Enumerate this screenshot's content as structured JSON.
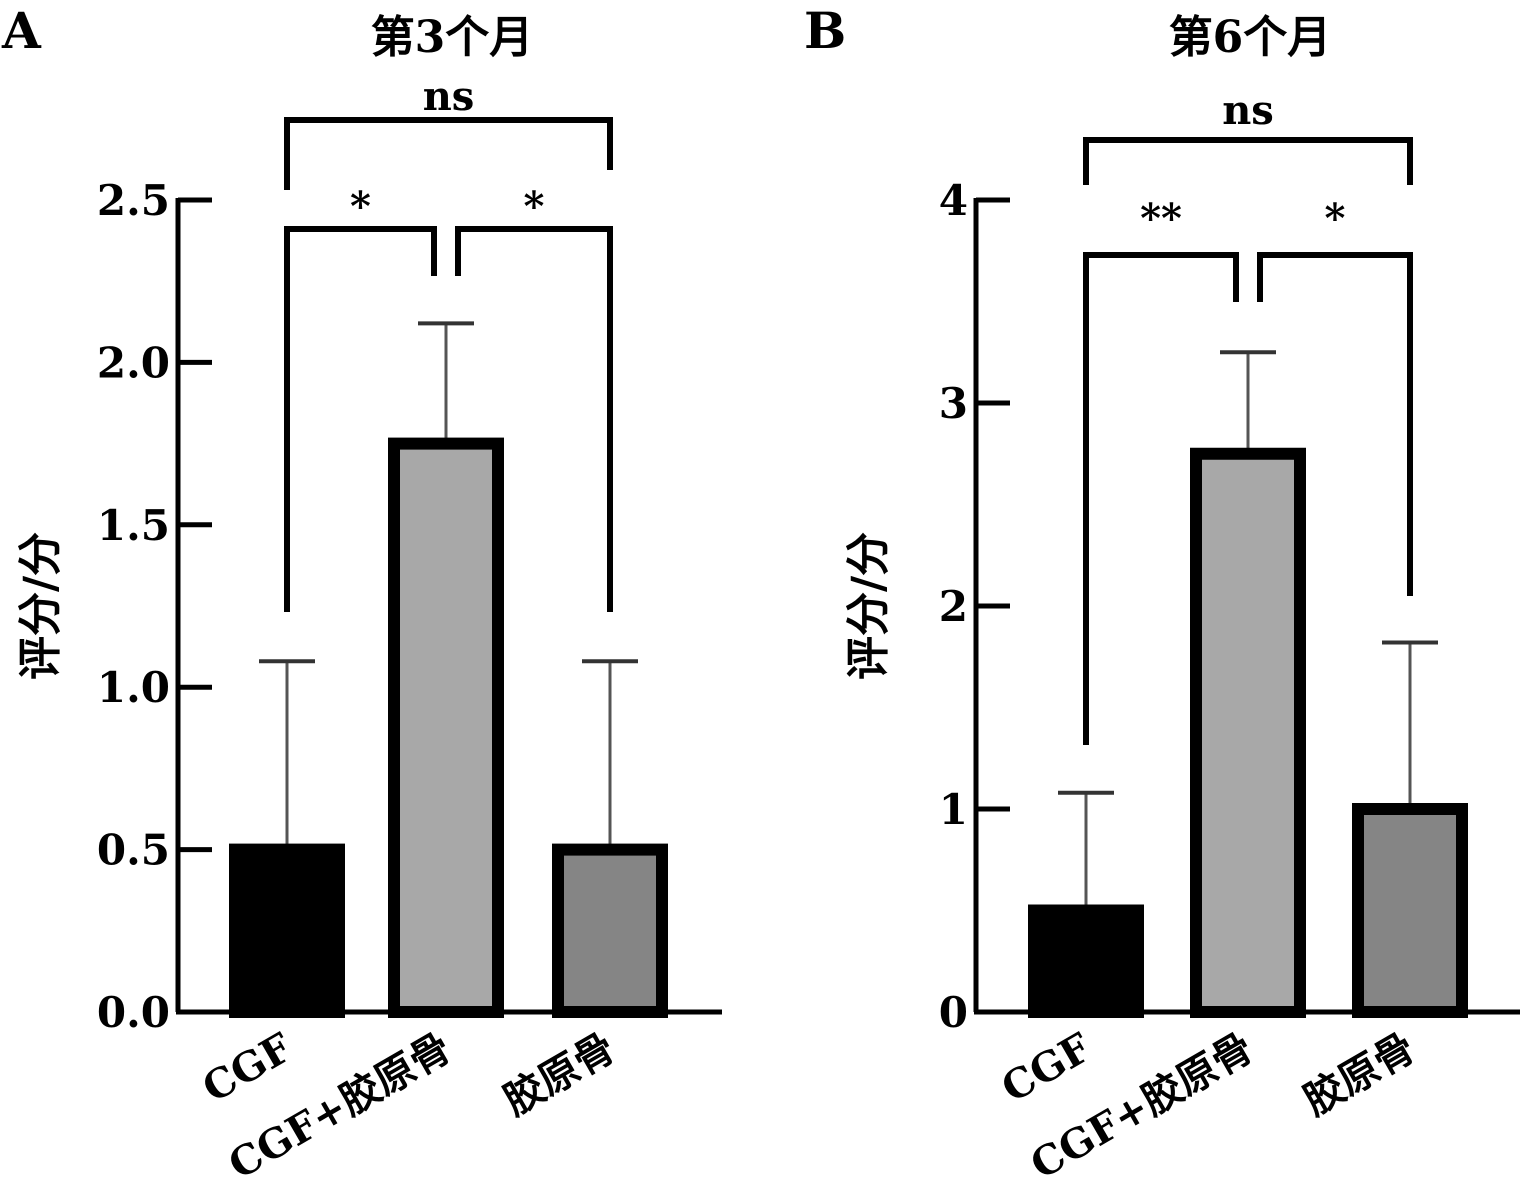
{
  "chart_data": [
    {
      "panel": "A",
      "type": "bar",
      "title": "第3个月",
      "ylabel": "评分/分",
      "xlabel": "",
      "categories": [
        "CGF",
        "CGF+胶原骨",
        "胶原骨"
      ],
      "values": [
        0.5,
        1.75,
        0.5
      ],
      "error": [
        0.58,
        0.37,
        0.58
      ],
      "ylim": [
        0,
        2.5
      ],
      "yticks": [
        "0.0",
        "0.5",
        "1.0",
        "1.5",
        "2.0",
        "2.5"
      ],
      "bar_colors": [
        "#000000",
        "#a8a8a8",
        "#858585"
      ],
      "grid": false,
      "significance": [
        {
          "from": 0,
          "to": 1,
          "label": "*"
        },
        {
          "from": 1,
          "to": 2,
          "label": "*"
        },
        {
          "from": 0,
          "to": 2,
          "label": "ns"
        }
      ]
    },
    {
      "panel": "B",
      "type": "bar",
      "title": "第6个月",
      "ylabel": "评分/分",
      "xlabel": "",
      "categories": [
        "CGF",
        "CGF+胶原骨",
        "胶原骨"
      ],
      "values": [
        0.5,
        2.75,
        1.0
      ],
      "error": [
        0.58,
        0.5,
        0.82
      ],
      "ylim": [
        0,
        4
      ],
      "yticks": [
        "0",
        "1",
        "2",
        "3",
        "4"
      ],
      "bar_colors": [
        "#000000",
        "#a8a8a8",
        "#858585"
      ],
      "grid": false,
      "significance": [
        {
          "from": 0,
          "to": 1,
          "label": "**"
        },
        {
          "from": 1,
          "to": 2,
          "label": "*"
        },
        {
          "from": 0,
          "to": 2,
          "label": "ns"
        }
      ]
    }
  ]
}
